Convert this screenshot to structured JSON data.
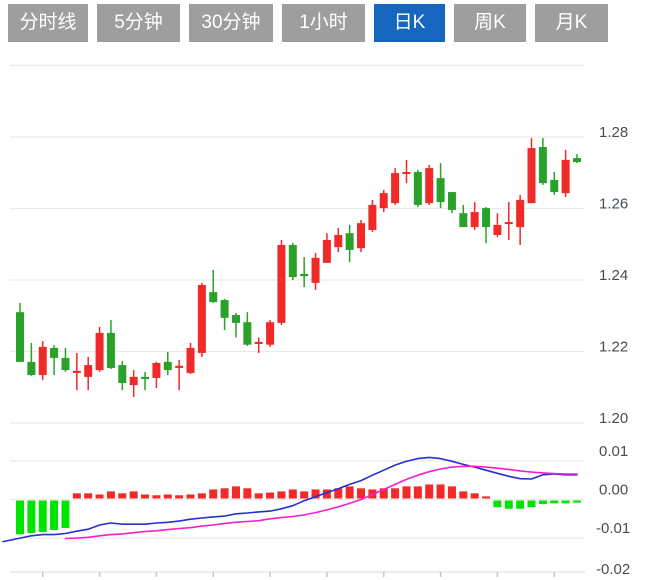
{
  "tabs": [
    {
      "label": "分时线",
      "active": false
    },
    {
      "label": "5分钟",
      "active": false
    },
    {
      "label": "30分钟",
      "active": false
    },
    {
      "label": "1小时",
      "active": false
    },
    {
      "label": "日K",
      "active": true
    },
    {
      "label": "周K",
      "active": false
    },
    {
      "label": "月K",
      "active": false
    }
  ],
  "colors": {
    "tab_bg": "#9e9e9e",
    "tab_active_bg": "#1666c0",
    "tab_text": "#ffffff",
    "candle_up": "#ef2a29",
    "candle_down": "#2aa22a",
    "hist_up": "#ef2a29",
    "hist_down": "#00e400",
    "dif_line": "#2430cf",
    "dea_line": "#f41fd2",
    "gridline": "#eaeaea",
    "axis_line": "#dde2e8",
    "tick": "#bcc8d4",
    "label_text": "#474d57"
  },
  "chart_data": [
    {
      "type": "candlestick",
      "title": "",
      "legend": [],
      "grid": true,
      "y_axis": {
        "side": "right",
        "labels": [
          "1.28",
          "1.26",
          "1.24",
          "1.22",
          "1.20"
        ],
        "values": [
          1.28,
          1.26,
          1.24,
          1.22,
          1.2
        ],
        "unlabeled_top_gridline_value": 1.3,
        "ylim": [
          1.196,
          1.302
        ]
      },
      "x_axis": {
        "labels": [],
        "tick_every_n_candles": 5,
        "tick_count": 10
      },
      "ohlc_note": "arrays are [open, high, low, close]; red candle = close>open, green = close<open",
      "ohlc": [
        [
          1.231,
          1.2336,
          1.2171,
          1.2171
        ],
        [
          1.2171,
          1.2224,
          1.2132,
          1.2134
        ],
        [
          1.2134,
          1.2229,
          1.212,
          1.2213
        ],
        [
          1.221,
          1.2218,
          1.2134,
          1.2182
        ],
        [
          1.2182,
          1.221,
          1.2143,
          1.2148
        ],
        [
          1.214,
          1.2196,
          1.2092,
          1.2146
        ],
        [
          1.2129,
          1.2185,
          1.2092,
          1.2162
        ],
        [
          1.2148,
          1.2269,
          1.2143,
          1.2252
        ],
        [
          1.2252,
          1.2288,
          1.2151,
          1.2154
        ],
        [
          1.2162,
          1.2173,
          1.2092,
          1.2112
        ],
        [
          1.2106,
          1.2148,
          1.2073,
          1.2129
        ],
        [
          1.2129,
          1.2143,
          1.2092,
          1.2123
        ],
        [
          1.2126,
          1.2171,
          1.2098,
          1.2168
        ],
        [
          1.2171,
          1.2199,
          1.2134,
          1.2148
        ],
        [
          1.2154,
          1.2176,
          1.2092,
          1.216
        ],
        [
          1.214,
          1.2224,
          1.2137,
          1.221
        ],
        [
          1.2196,
          1.2392,
          1.2185,
          1.2386
        ],
        [
          1.2366,
          1.2428,
          1.2336,
          1.2338
        ],
        [
          1.2344,
          1.2347,
          1.226,
          1.2294
        ],
        [
          1.2302,
          1.2308,
          1.2239,
          1.228
        ],
        [
          1.2282,
          1.231,
          1.2216,
          1.2219
        ],
        [
          1.2221,
          1.2239,
          1.2196,
          1.2227
        ],
        [
          1.2219,
          1.2288,
          1.2213,
          1.2282
        ],
        [
          1.228,
          1.2512,
          1.2274,
          1.2498
        ],
        [
          1.2498,
          1.2504,
          1.24,
          1.2408
        ],
        [
          1.2417,
          1.2464,
          1.238,
          1.2411
        ],
        [
          1.2392,
          1.2476,
          1.2372,
          1.2462
        ],
        [
          1.2448,
          1.2531,
          1.2448,
          1.2512
        ],
        [
          1.2492,
          1.2545,
          1.2478,
          1.2526
        ],
        [
          1.2531,
          1.2554,
          1.245,
          1.2484
        ],
        [
          1.2489,
          1.2568,
          1.2478,
          1.2559
        ],
        [
          1.254,
          1.2624,
          1.2534,
          1.261
        ],
        [
          1.2601,
          1.2652,
          1.259,
          1.2643
        ],
        [
          1.2615,
          1.2713,
          1.261,
          1.2699
        ],
        [
          1.2697,
          1.2736,
          1.2671,
          1.2702
        ],
        [
          1.2702,
          1.2708,
          1.2604,
          1.261
        ],
        [
          1.2615,
          1.2722,
          1.261,
          1.2713
        ],
        [
          1.2685,
          1.2727,
          1.2601,
          1.2618
        ],
        [
          1.2646,
          1.2646,
          1.2587,
          1.2596
        ],
        [
          1.2587,
          1.261,
          1.2548,
          1.2548
        ],
        [
          1.2548,
          1.2618,
          1.254,
          1.259
        ],
        [
          1.2601,
          1.2604,
          1.2503,
          1.2548
        ],
        [
          1.2526,
          1.2587,
          1.252,
          1.2554
        ],
        [
          1.2557,
          1.2618,
          1.2512,
          1.2562
        ],
        [
          1.2548,
          1.2638,
          1.2498,
          1.2624
        ],
        [
          1.2615,
          1.2797,
          1.2615,
          1.2769
        ],
        [
          1.2772,
          1.2797,
          1.2666,
          1.2671
        ],
        [
          1.268,
          1.2702,
          1.2638,
          1.2646
        ],
        [
          1.2643,
          1.2764,
          1.2632,
          1.2736
        ],
        [
          1.2741,
          1.2752,
          1.2727,
          1.273
        ]
      ]
    },
    {
      "type": "macd",
      "title": "",
      "grid": true,
      "y_axis": {
        "side": "right",
        "labels": [
          "0.01",
          "0.00",
          "-0.01",
          "-0.02"
        ],
        "values": [
          0.01,
          0.0,
          -0.01,
          -0.02
        ],
        "ylim": [
          -0.022,
          0.012
        ]
      },
      "dif": [
        -0.01,
        -0.0094,
        -0.0091,
        -0.0091,
        -0.0088,
        -0.0082,
        -0.0077,
        -0.0066,
        -0.0061,
        -0.0064,
        -0.0064,
        -0.0064,
        -0.0061,
        -0.0059,
        -0.0056,
        -0.0051,
        -0.0048,
        -0.0045,
        -0.0043,
        -0.0037,
        -0.0035,
        -0.0032,
        -0.003,
        -0.0024,
        -0.0016,
        -0.0003,
        0.0007,
        0.0018,
        0.0028,
        0.0039,
        0.0049,
        0.0063,
        0.0076,
        0.0089,
        0.0099,
        0.0106,
        0.0109,
        0.0106,
        0.0099,
        0.0091,
        0.0084,
        0.0076,
        0.0068,
        0.006,
        0.0054,
        0.0053,
        0.0064,
        0.0066,
        0.0064,
        0.0064
      ],
      "dea": [
        null,
        null,
        null,
        null,
        -0.0101,
        -0.01,
        -0.0098,
        -0.0094,
        -0.0091,
        -0.0089,
        -0.0086,
        -0.0083,
        -0.0081,
        -0.0078,
        -0.0075,
        -0.0073,
        -0.0069,
        -0.0066,
        -0.0062,
        -0.0059,
        -0.0057,
        -0.0055,
        -0.005,
        -0.0047,
        -0.0044,
        -0.004,
        -0.0034,
        -0.0027,
        -0.0019,
        -0.001,
        0.0,
        0.0013,
        0.0026,
        0.0039,
        0.0052,
        0.0063,
        0.0072,
        0.0079,
        0.0084,
        0.0086,
        0.0086,
        0.0084,
        0.0081,
        0.0078,
        0.0074,
        0.0071,
        0.0069,
        0.0067,
        0.0066,
        0.0066
      ],
      "histogram": [
        -0.009,
        -0.0087,
        -0.0084,
        -0.0079,
        -0.0074,
        0.0016,
        0.0016,
        0.0013,
        0.0021,
        0.0016,
        0.0021,
        0.0013,
        0.0011,
        0.0013,
        0.0011,
        0.0013,
        0.0016,
        0.0026,
        0.0029,
        0.0034,
        0.0029,
        0.0016,
        0.0018,
        0.0021,
        0.0026,
        0.0021,
        0.0026,
        0.0026,
        0.0029,
        0.0034,
        0.0029,
        0.0026,
        0.0029,
        0.0029,
        0.0034,
        0.0034,
        0.0039,
        0.0039,
        0.0034,
        0.0021,
        0.0016,
        0.0008,
        -0.002,
        -0.0024,
        -0.0024,
        -0.002,
        -0.0012,
        -0.001,
        -0.001,
        -0.0008
      ]
    }
  ]
}
